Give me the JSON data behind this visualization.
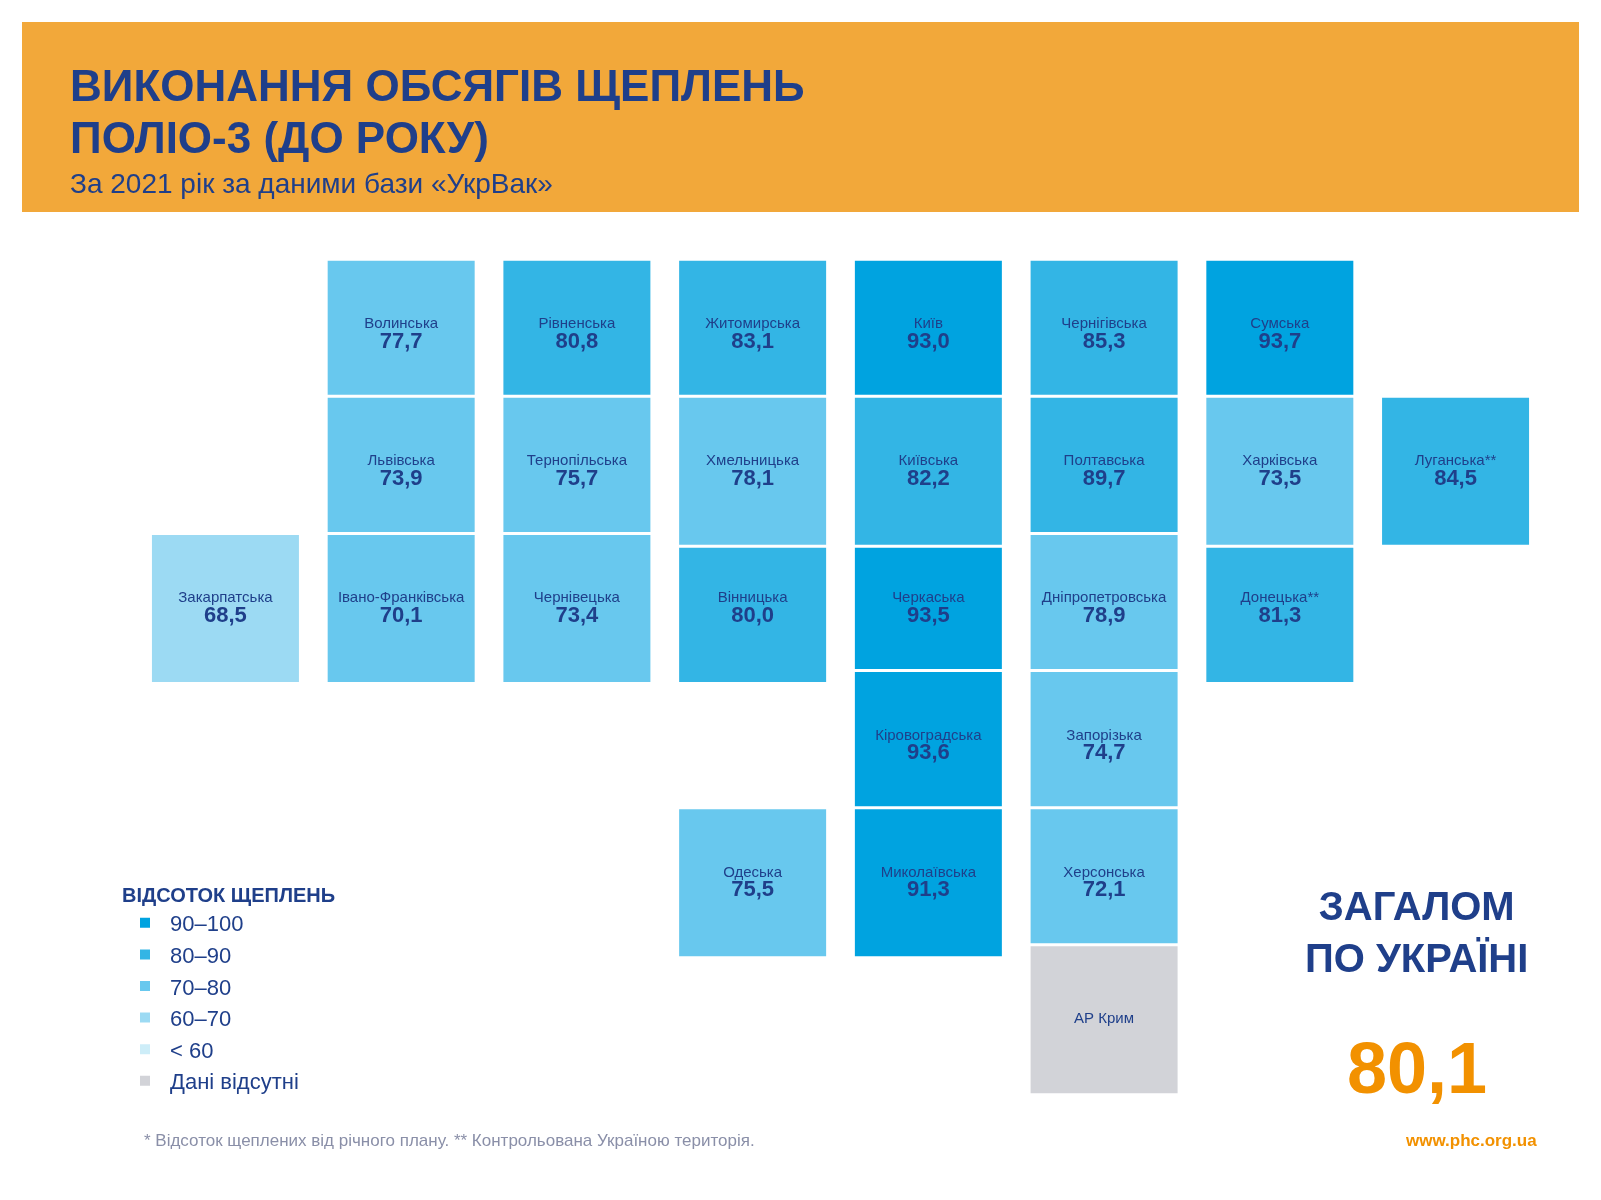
{
  "chart_data": {
    "type": "other",
    "title": "ВИКОНАННЯ ОБСЯГІВ ЩЕПЛЕНЬ ПОЛІО-3 (ДО РОКУ)",
    "subtitle": "За 2021 рік за даними бази «УкрВак»",
    "categories": [
      "Волинська",
      "Рівненська",
      "Житомирська",
      "Київ",
      "Чернігівська",
      "Сумська",
      "Львівська",
      "Тернопільська",
      "Хмельницька",
      "Київська",
      "Полтавська",
      "Харківська",
      "Луганська**",
      "Закарпатська",
      "Івано-Франківська",
      "Чернівецька",
      "Вінницька",
      "Черкаська",
      "Дніпропетровська",
      "Донецька**",
      "Кіровоградська",
      "Запорізька",
      "Одеська",
      "Миколаївська",
      "Херсонська",
      "АР Крим"
    ],
    "legend_title": "ВІДСОТОК ЩЕПЛЕНЬ",
    "legend": "bottom left",
    "series": [
      {
        "name": "90–100",
        "color": "#00a3e0",
        "values": [
          null,
          null,
          null,
          93.0,
          null,
          93.7,
          null,
          null,
          null,
          null,
          null,
          null,
          null,
          null,
          null,
          null,
          null,
          93.5,
          null,
          null,
          93.6,
          null,
          null,
          91.3,
          null,
          null
        ],
        "value_labels": [
          null,
          null,
          null,
          "93,0",
          null,
          "93,7",
          null,
          null,
          null,
          null,
          null,
          null,
          null,
          null,
          null,
          null,
          null,
          "93,5",
          null,
          null,
          "93,6",
          null,
          null,
          "91,3",
          null,
          null
        ]
      },
      {
        "name": "80–90",
        "color": "#33b5e5",
        "values": [
          null,
          80.8,
          83.1,
          null,
          85.3,
          null,
          null,
          null,
          null,
          82.2,
          89.7,
          null,
          84.5,
          null,
          null,
          null,
          80.0,
          null,
          null,
          81.3,
          null,
          null,
          null,
          null,
          null,
          null
        ],
        "value_labels": [
          null,
          "80,8",
          "83,1",
          null,
          "85,3",
          null,
          null,
          null,
          null,
          "82,2",
          "89,7",
          null,
          "84,5",
          null,
          null,
          null,
          "80,0",
          null,
          null,
          "81,3",
          null,
          null,
          null,
          null,
          null,
          null
        ]
      },
      {
        "name": "70–80",
        "color": "#68c8ee",
        "values": [
          77.7,
          null,
          null,
          null,
          null,
          null,
          73.9,
          75.7,
          78.1,
          null,
          null,
          73.5,
          null,
          null,
          70.1,
          73.4,
          null,
          null,
          78.9,
          null,
          null,
          74.7,
          75.5,
          null,
          72.1,
          null
        ],
        "value_labels": [
          "77,7",
          null,
          null,
          null,
          null,
          null,
          "73,9",
          "75,7",
          "78,1",
          null,
          null,
          "73,5",
          null,
          null,
          "70,1",
          "73,4",
          null,
          null,
          "78,9",
          null,
          null,
          "74,7",
          "75,5",
          null,
          "72,1",
          null
        ]
      },
      {
        "name": "60–70",
        "color": "#9cdaf3",
        "values": [
          null,
          null,
          null,
          null,
          null,
          null,
          null,
          null,
          null,
          null,
          null,
          null,
          null,
          68.5,
          null,
          null,
          null,
          null,
          null,
          null,
          null,
          null,
          null,
          null,
          null,
          null
        ],
        "value_labels": [
          null,
          null,
          null,
          null,
          null,
          null,
          null,
          null,
          null,
          null,
          null,
          null,
          null,
          "68,5",
          null,
          null,
          null,
          null,
          null,
          null,
          null,
          null,
          null,
          null,
          null,
          null
        ]
      },
      {
        "name": "< 60",
        "color": "#cdedf8",
        "values": [
          null,
          null,
          null,
          null,
          null,
          null,
          null,
          null,
          null,
          null,
          null,
          null,
          null,
          null,
          null,
          null,
          null,
          null,
          null,
          null,
          null,
          null,
          null,
          null,
          null,
          null
        ]
      },
      {
        "name": "Дані відсутні",
        "color": "#d2d3d8",
        "values": [
          null,
          null,
          null,
          null,
          null,
          null,
          null,
          null,
          null,
          null,
          null,
          null,
          null,
          null,
          null,
          null,
          null,
          null,
          null,
          null,
          null,
          null,
          null,
          null,
          null,
          null
        ]
      }
    ],
    "annotations": [
      "ЗАГАЛОМ ПО УКРАЇНІ",
      "80,1",
      "* Відсоток щеплених від річного плану. ** Контрольована Україною територія.",
      "www.phc.org.ua"
    ]
  }
}
